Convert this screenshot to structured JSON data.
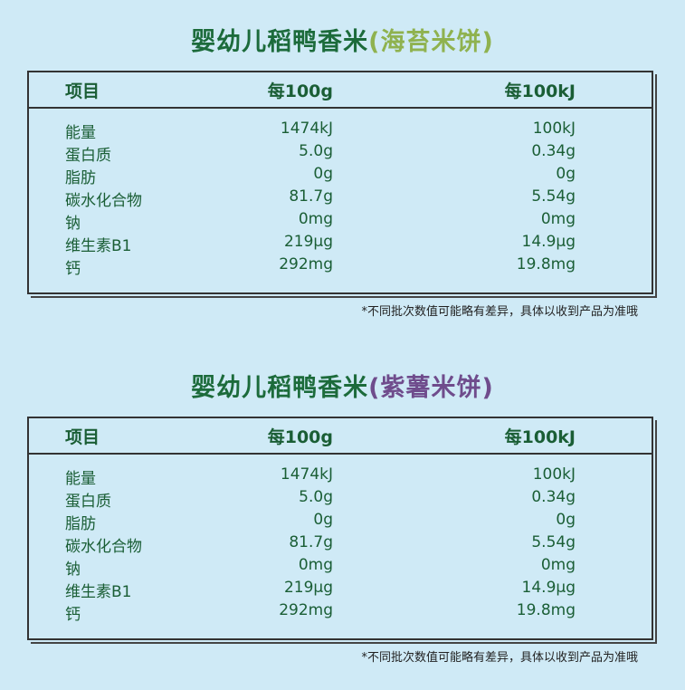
{
  "panels": [
    {
      "title": {
        "main": "婴幼儿稻鸭香米",
        "variant": "(海苔米饼)"
      },
      "table": {
        "header": [
          "项目",
          "每100g",
          "每100kJ"
        ],
        "rows": [
          [
            "能量",
            "1474kJ",
            "100kJ"
          ],
          [
            "蛋白质",
            "5.0g",
            "0.34g"
          ],
          [
            "脂肪",
            "0g",
            "0g"
          ],
          [
            "碳水化合物",
            "81.7g",
            "5.54g"
          ],
          [
            "钠",
            "0mg",
            "0mg"
          ],
          [
            "维生素B1",
            "219μg",
            "14.9μg"
          ],
          [
            "钙",
            "292mg",
            "19.8mg"
          ]
        ]
      },
      "note": "*不同批次数值可能略有差异，具体以收到产品为准哦"
    },
    {
      "title": {
        "main": "婴幼儿稻鸭香米",
        "variant": "(紫薯米饼)"
      },
      "table": {
        "header": [
          "项目",
          "每100g",
          "每100kJ"
        ],
        "rows": [
          [
            "能量",
            "1474kJ",
            "100kJ"
          ],
          [
            "蛋白质",
            "5.0g",
            "0.34g"
          ],
          [
            "脂肪",
            "0g",
            "0g"
          ],
          [
            "碳水化合物",
            "81.7g",
            "5.54g"
          ],
          [
            "钠",
            "0mg",
            "0mg"
          ],
          [
            "维生素B1",
            "219μg",
            "14.9μg"
          ],
          [
            "钙",
            "292mg",
            "19.8mg"
          ]
        ]
      },
      "note": "*不同批次数值可能略有差异，具体以收到产品为准哦"
    }
  ]
}
